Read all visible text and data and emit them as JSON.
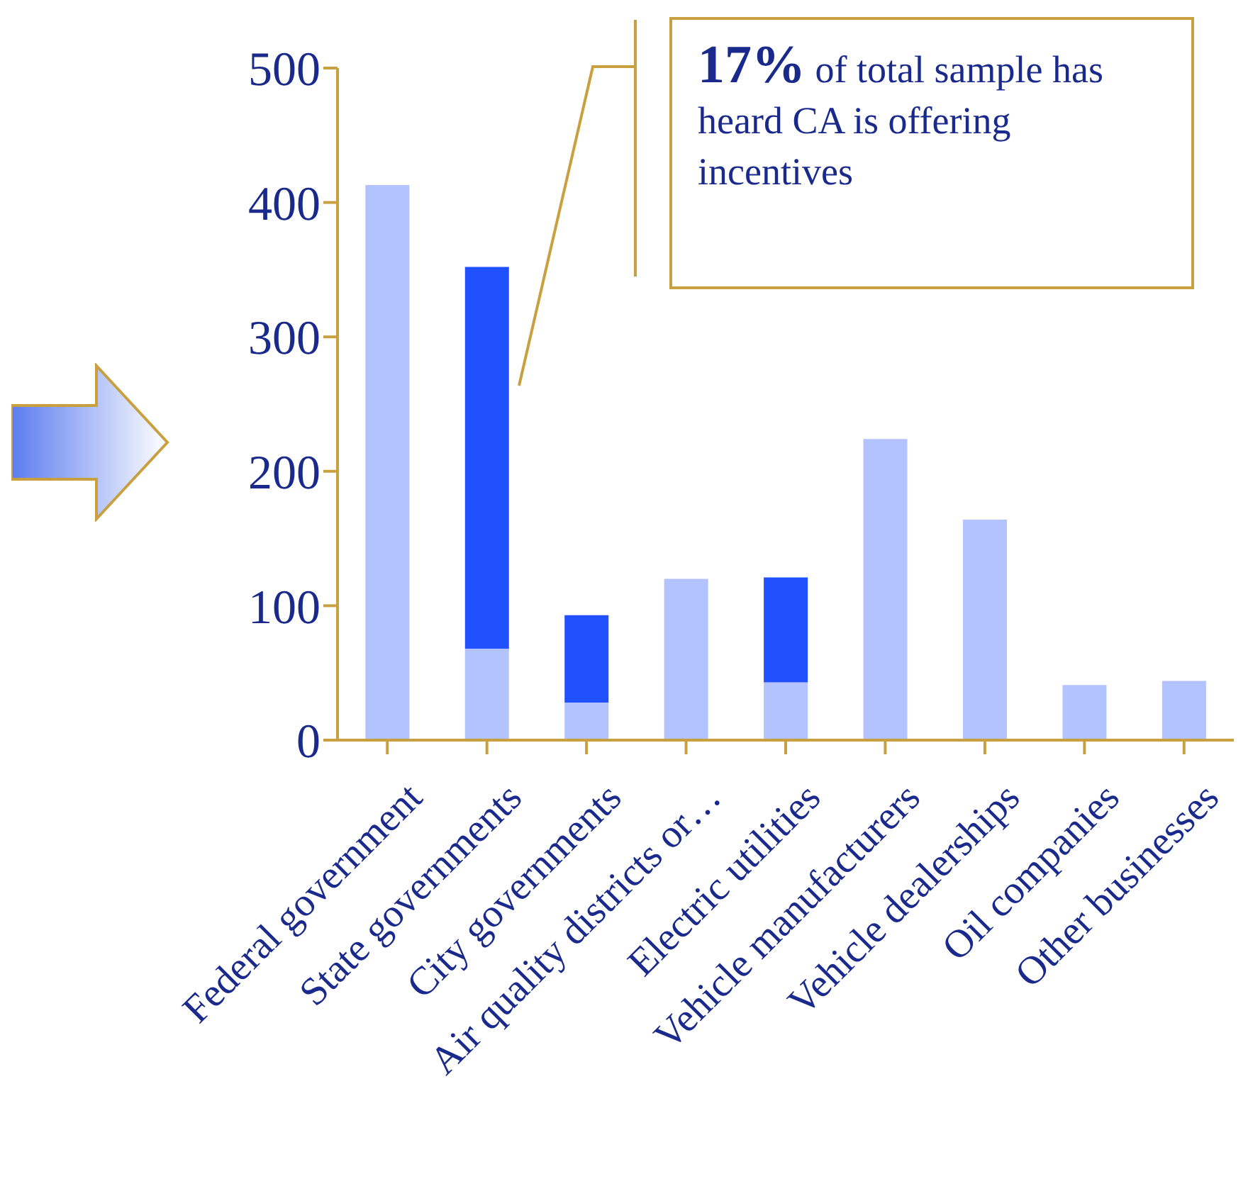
{
  "chart_data": {
    "type": "bar",
    "stacked": true,
    "categories": [
      "Federal government",
      "State governments",
      "City governments",
      "Air quality districts or…",
      "Electric utilities",
      "Vehicle manufacturers",
      "Vehicle dealerships",
      "Oil companies",
      "Other businesses"
    ],
    "series": [
      {
        "color": "#b3c3ff",
        "values": [
          413,
          68,
          28,
          120,
          43,
          224,
          164,
          41,
          44
        ]
      },
      {
        "color": "#2050ff",
        "values": [
          null,
          284,
          65,
          null,
          78,
          null,
          null,
          null,
          null
        ]
      }
    ],
    "ylim": [
      0,
      500
    ],
    "yticks": [
      0,
      100,
      200,
      300,
      400,
      500
    ],
    "annotations": [
      "17% of total sample has heard CA is offering incentives"
    ]
  }
}
